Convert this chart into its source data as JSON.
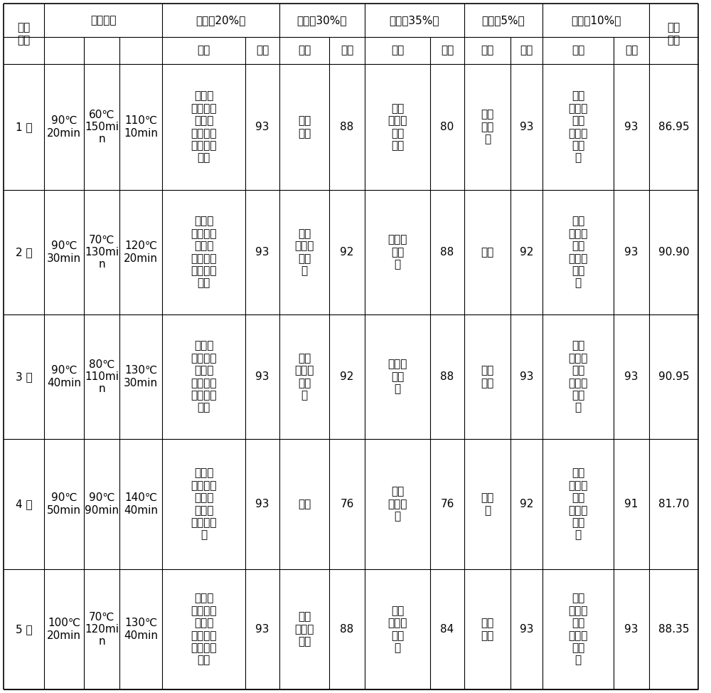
{
  "rows": [
    {
      "name": "1 号",
      "bake1": "90℃\n20min",
      "bake2": "60℃\n150mi\nn",
      "bake3": "110℃\n10min",
      "waixin_eval": "颗粒紧\n结、色砂\n绿润稍\n有红点、\n匀整、较\n洁净",
      "waixin_score": "93",
      "xianqi_eval": "花香\n清长",
      "xianqi_score": "88",
      "ziwei_eval": "醇厚\n鲜爽、\n稍带\n青味",
      "ziwei_score": "80",
      "tangse_eval": "浅金\n黄明\n亮",
      "tangse_score": "93",
      "yedi_eval": "肥厚\n软亮、\n较匀\n齐、红\n边稍\n显",
      "yedi_score": "93",
      "total": "86.95"
    },
    {
      "name": "2 号",
      "bake1": "90℃\n30min",
      "bake2": "70℃\n130mi\nn",
      "bake3": "120℃\n20min",
      "waixin_eval": "颗粒紧\n结、色砂\n绿润稍\n有红点、\n匀整、较\n洁净",
      "waixin_score": "93",
      "xianqi_eval": "花香\n浓郁、\n火香\n轻",
      "xianqi_score": "92",
      "ziwei_eval": "浓厚、\n火候\n轻",
      "ziwei_score": "88",
      "tangse_eval": "橙黄",
      "tangse_score": "92",
      "yedi_eval": "肥厚\n软亮、\n较匀\n齐、红\n边稍\n显",
      "yedi_score": "93",
      "total": "90.90"
    },
    {
      "name": "3 号",
      "bake1": "90℃\n40min",
      "bake2": "80℃\n110mi\nn",
      "bake3": "130℃\n30min",
      "waixin_eval": "颗粒紧\n结、色砂\n绿润稍\n有红点、\n匀整、较\n洁净",
      "waixin_score": "93",
      "xianqi_eval": "花香\n浓郁、\n火香\n轻",
      "xianqi_score": "92",
      "ziwei_eval": "醇厚、\n火候\n轻",
      "ziwei_score": "88",
      "tangse_eval": "金黄\n明亮",
      "tangse_score": "93",
      "yedi_eval": "肥厚\n软亮、\n较匀\n齐、红\n边稍\n显",
      "yedi_score": "93",
      "total": "90.95"
    },
    {
      "name": "4 号",
      "bake1": "90℃\n50min",
      "bake2": "90℃\n90min",
      "bake3": "140℃\n40min",
      "waixin_eval": "颗粒紧\n结、色黄\n绿褐稍\n润、匀\n整、较洁\n净",
      "waixin_score": "93",
      "xianqi_eval": "火高",
      "xianqi_score": "76",
      "ziwei_eval": "浓稍\n涩、火\n高",
      "ziwei_score": "76",
      "tangse_eval": "深橙\n黄",
      "tangse_score": "92",
      "yedi_eval": "肥厚\n稍硬、\n尚匀\n齐、红\n边稍\n显",
      "yedi_score": "91",
      "total": "81.70"
    },
    {
      "name": "5 号",
      "bake1": "100℃\n20min",
      "bake2": "70℃\n120mi\nn",
      "bake3": "130℃\n40min",
      "waixin_eval": "颗粒紧\n结、色砂\n绿润稍\n有红点、\n匀整、较\n洁净",
      "waixin_score": "93",
      "xianqi_eval": "花香\n显、火\n香足",
      "xianqi_score": "88",
      "ziwei_eval": "浓稍\n苦涩、\n火候\n足",
      "ziwei_score": "84",
      "tangse_eval": "橙黄\n明亮",
      "tangse_score": "93",
      "yedi_eval": "肥厚\n软亮、\n较匀\n齐、红\n边稍\n显",
      "yedi_score": "93",
      "total": "88.35"
    }
  ],
  "border_color": "#000000",
  "bg_color": "#ffffff",
  "text_color": "#000000"
}
